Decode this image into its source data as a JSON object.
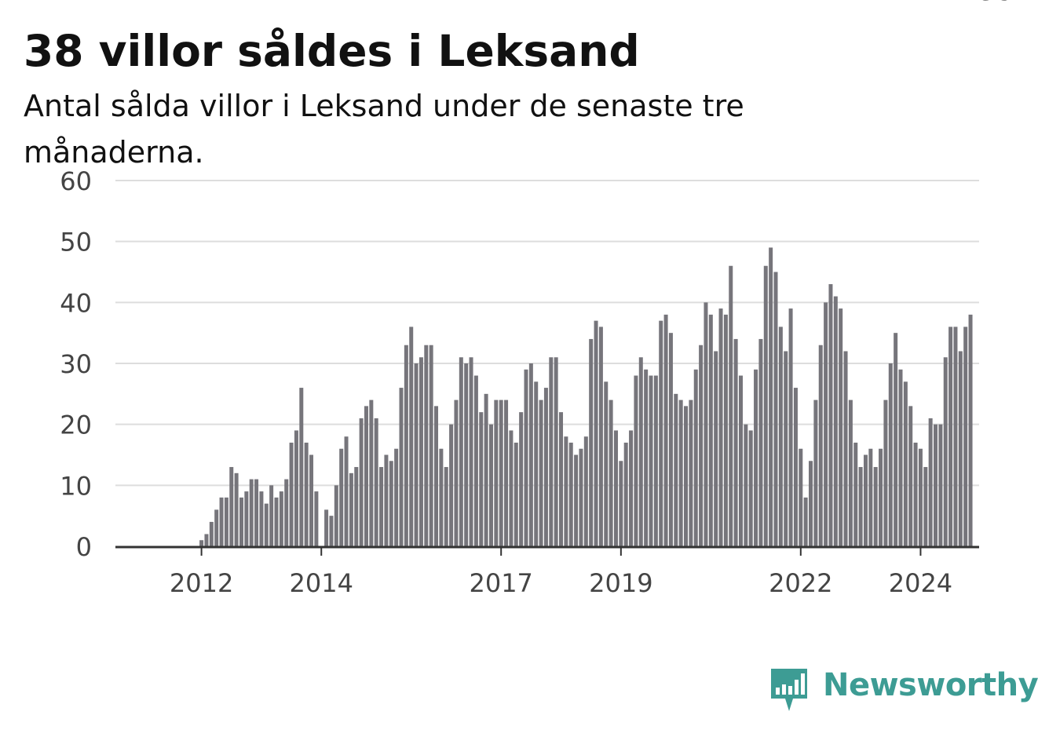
{
  "header": {
    "title": "38 villor såldes i Leksand",
    "subtitle": "Antal sålda villor i Leksand under de senaste tre månaderna."
  },
  "brand": {
    "name": "Newsworthy",
    "color": "#3d9c94",
    "icon": "newsworthy-logo-icon"
  },
  "colors": {
    "bar": "#76757b",
    "highlight": "#1aa39a",
    "grid": "#dddddd",
    "axis": "#333333"
  },
  "chart_data": {
    "type": "bar",
    "ylim": [
      0,
      60
    ],
    "yticks": [
      "0",
      "10",
      "20",
      "30",
      "40",
      "50",
      "60"
    ],
    "xticks": [
      {
        "label": "2012",
        "index": 10
      },
      {
        "label": "2014",
        "index": 34
      },
      {
        "label": "2017",
        "index": 70
      },
      {
        "label": "2019",
        "index": 94
      },
      {
        "label": "2022",
        "index": 130
      },
      {
        "label": "2024",
        "index": 154
      }
    ],
    "values": [
      0,
      0,
      0,
      0,
      0,
      0,
      0,
      0,
      0,
      0,
      1,
      2,
      4,
      6,
      8,
      8,
      13,
      12,
      8,
      9,
      11,
      11,
      9,
      7,
      10,
      8,
      9,
      11,
      17,
      19,
      26,
      17,
      15,
      9,
      0,
      6,
      5,
      10,
      16,
      18,
      12,
      13,
      21,
      23,
      24,
      21,
      13,
      15,
      14,
      16,
      26,
      33,
      36,
      30,
      31,
      33,
      33,
      23,
      16,
      13,
      20,
      24,
      31,
      30,
      31,
      28,
      22,
      25,
      20,
      24,
      24,
      24,
      19,
      17,
      22,
      29,
      30,
      27,
      24,
      26,
      31,
      31,
      22,
      18,
      17,
      15,
      16,
      18,
      34,
      37,
      36,
      27,
      24,
      19,
      14,
      17,
      19,
      28,
      31,
      29,
      28,
      28,
      37,
      38,
      35,
      25,
      24,
      23,
      24,
      29,
      33,
      40,
      38,
      32,
      39,
      38,
      46,
      34,
      28,
      20,
      19,
      29,
      34,
      46,
      49,
      45,
      36,
      32,
      39,
      26,
      16,
      8,
      14,
      24,
      33,
      40,
      43,
      41,
      39,
      32,
      24,
      17,
      13,
      15,
      16,
      13,
      16,
      24,
      30,
      35,
      29,
      27,
      23,
      17,
      16,
      13,
      21,
      20,
      20,
      31,
      36,
      36,
      32,
      36,
      38
    ],
    "highlight_index": 169,
    "highlight_label": "38"
  }
}
